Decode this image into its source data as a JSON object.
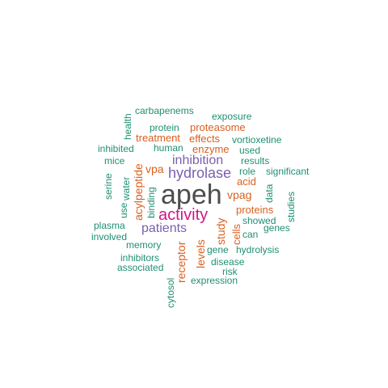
{
  "colors": {
    "gray": "#4d4d4d",
    "magenta": "#d0168a",
    "purple": "#7a5fae",
    "orange": "#d9601f",
    "teal": "#1f8f72"
  },
  "words": [
    {
      "text": "apeh",
      "color": "gray"
    },
    {
      "text": "activity",
      "color": "magenta"
    },
    {
      "text": "hydrolase",
      "color": "purple"
    },
    {
      "text": "inhibition",
      "color": "purple"
    },
    {
      "text": "patients",
      "color": "purple"
    },
    {
      "text": "acylpeptide",
      "color": "orange"
    },
    {
      "text": "vpa",
      "color": "orange"
    },
    {
      "text": "vpag",
      "color": "orange"
    },
    {
      "text": "study",
      "color": "orange"
    },
    {
      "text": "levels",
      "color": "orange"
    },
    {
      "text": "receptor",
      "color": "orange"
    },
    {
      "text": "enzyme",
      "color": "orange"
    },
    {
      "text": "effects",
      "color": "orange"
    },
    {
      "text": "treatment",
      "color": "orange"
    },
    {
      "text": "proteasome",
      "color": "orange"
    },
    {
      "text": "proteins",
      "color": "orange"
    },
    {
      "text": "acid",
      "color": "orange"
    },
    {
      "text": "cells",
      "color": "orange"
    },
    {
      "text": "carbapenems",
      "color": "teal"
    },
    {
      "text": "exposure",
      "color": "teal"
    },
    {
      "text": "health",
      "color": "teal"
    },
    {
      "text": "protein",
      "color": "teal"
    },
    {
      "text": "vortioxetine",
      "color": "teal"
    },
    {
      "text": "inhibited",
      "color": "teal"
    },
    {
      "text": "human",
      "color": "teal"
    },
    {
      "text": "used",
      "color": "teal"
    },
    {
      "text": "mice",
      "color": "teal"
    },
    {
      "text": "results",
      "color": "teal"
    },
    {
      "text": "role",
      "color": "teal"
    },
    {
      "text": "significant",
      "color": "teal"
    },
    {
      "text": "serine",
      "color": "teal"
    },
    {
      "text": "water",
      "color": "teal"
    },
    {
      "text": "binding",
      "color": "teal"
    },
    {
      "text": "data",
      "color": "teal"
    },
    {
      "text": "studies",
      "color": "teal"
    },
    {
      "text": "use",
      "color": "teal"
    },
    {
      "text": "showed",
      "color": "teal"
    },
    {
      "text": "genes",
      "color": "teal"
    },
    {
      "text": "plasma",
      "color": "teal"
    },
    {
      "text": "involved",
      "color": "teal"
    },
    {
      "text": "can",
      "color": "teal"
    },
    {
      "text": "memory",
      "color": "teal"
    },
    {
      "text": "gene",
      "color": "teal"
    },
    {
      "text": "hydrolysis",
      "color": "teal"
    },
    {
      "text": "inhibitors",
      "color": "teal"
    },
    {
      "text": "disease",
      "color": "teal"
    },
    {
      "text": "associated",
      "color": "teal"
    },
    {
      "text": "risk",
      "color": "teal"
    },
    {
      "text": "cytosol",
      "color": "teal"
    },
    {
      "text": "expression",
      "color": "teal"
    }
  ]
}
